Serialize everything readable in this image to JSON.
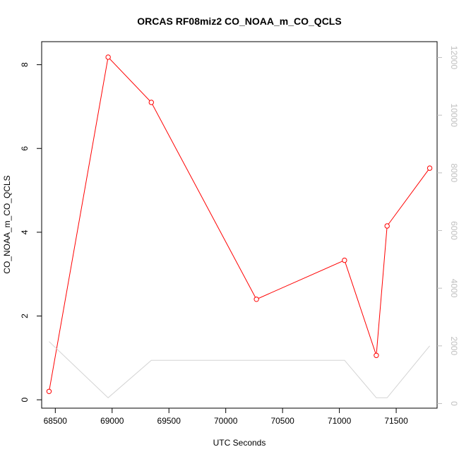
{
  "chart_data": {
    "type": "line",
    "title": "ORCAS RF08miz2 CO_NOAA_m_CO_QCLS",
    "xlabel": "UTC Seconds",
    "ylabel": "CO_NOAA_m_CO_QCLS",
    "xlim": [
      68380,
      71860
    ],
    "ylim": [
      -0.2,
      8.55
    ],
    "y2lim": [
      -160,
      12550
    ],
    "x_ticks": [
      68500,
      69000,
      69500,
      70000,
      70500,
      71000,
      71500
    ],
    "y_ticks": [
      0,
      2,
      4,
      6,
      8
    ],
    "y2_ticks": [
      0,
      2000,
      4000,
      6000,
      8000,
      10000,
      12000
    ],
    "grid": false,
    "series": [
      {
        "axis": "left",
        "color": "#ff0000",
        "markers": "open-circle",
        "x": [
          68445,
          68965,
          69345,
          70270,
          71045,
          71325,
          71420,
          71795
        ],
        "y": [
          0.2,
          8.18,
          7.1,
          2.4,
          3.33,
          1.06,
          4.15,
          5.53
        ]
      },
      {
        "axis": "right",
        "color": "#d3d3d3",
        "markers": "none",
        "x": [
          68445,
          68965,
          69345,
          71045,
          71325,
          71420,
          71795
        ],
        "y": [
          2150,
          200,
          1500,
          1500,
          200,
          200,
          2000
        ]
      }
    ]
  }
}
